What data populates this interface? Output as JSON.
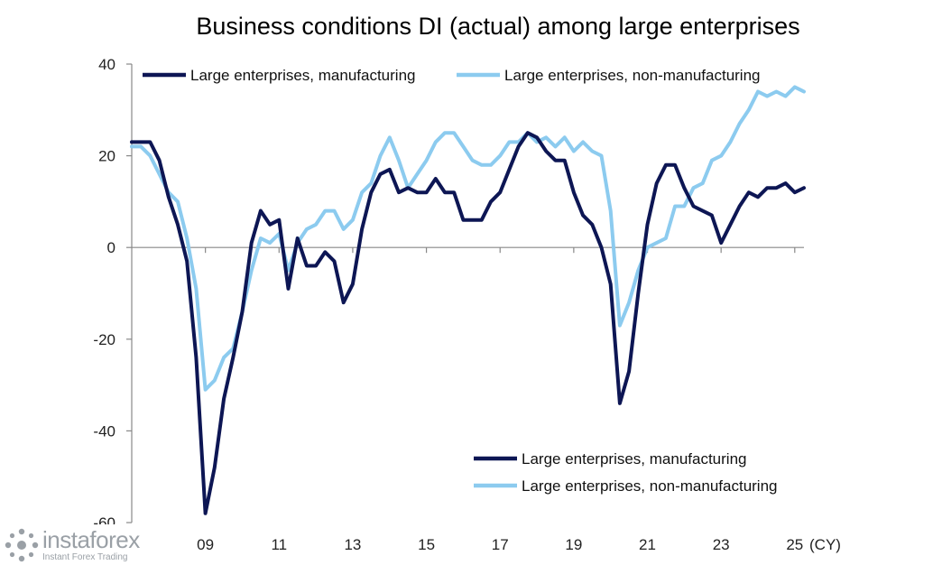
{
  "watermark": {
    "brand": "instaforex",
    "tagline": "Instant Forex Trading"
  },
  "chart_data": {
    "type": "line",
    "title": "Business conditions DI (actual) among large enterprises",
    "xlabel": "(CY)",
    "ylabel": "",
    "ylim": [
      -60,
      40
    ],
    "xlim": [
      2007.0,
      2025.25
    ],
    "yticks": [
      40,
      20,
      0,
      -20,
      -40,
      -60
    ],
    "xticks": [
      {
        "value": 2009,
        "label": "09"
      },
      {
        "value": 2011,
        "label": "11"
      },
      {
        "value": 2013,
        "label": "13"
      },
      {
        "value": 2015,
        "label": "15"
      },
      {
        "value": 2017,
        "label": "17"
      },
      {
        "value": 2019,
        "label": "19"
      },
      {
        "value": 2021,
        "label": "21"
      },
      {
        "value": 2023,
        "label": "23"
      },
      {
        "value": 2025,
        "label": "25"
      }
    ],
    "x_unit_label": "(CY)",
    "legends": [
      {
        "position": "top-left",
        "entries": [
          "Large enterprises, manufacturing",
          "Large enterprises, non-manufacturing"
        ]
      },
      {
        "position": "bottom-right",
        "entries": [
          "Large enterprises, manufacturing",
          "Large enterprises, non-manufacturing"
        ]
      }
    ],
    "series": [
      {
        "name": "Large enterprises, manufacturing",
        "color": "#0d1654",
        "x": [
          2007.0,
          2007.25,
          2007.5,
          2007.75,
          2008.0,
          2008.25,
          2008.5,
          2008.75,
          2009.0,
          2009.25,
          2009.5,
          2009.75,
          2010.0,
          2010.25,
          2010.5,
          2010.75,
          2011.0,
          2011.25,
          2011.5,
          2011.75,
          2012.0,
          2012.25,
          2012.5,
          2012.75,
          2013.0,
          2013.25,
          2013.5,
          2013.75,
          2014.0,
          2014.25,
          2014.5,
          2014.75,
          2015.0,
          2015.25,
          2015.5,
          2015.75,
          2016.0,
          2016.25,
          2016.5,
          2016.75,
          2017.0,
          2017.25,
          2017.5,
          2017.75,
          2018.0,
          2018.25,
          2018.5,
          2018.75,
          2019.0,
          2019.25,
          2019.5,
          2019.75,
          2020.0,
          2020.25,
          2020.5,
          2020.75,
          2021.0,
          2021.25,
          2021.5,
          2021.75,
          2022.0,
          2022.25,
          2022.5,
          2022.75,
          2023.0,
          2023.25,
          2023.5,
          2023.75,
          2024.0,
          2024.25,
          2024.5,
          2024.75,
          2025.0,
          2025.25
        ],
        "values": [
          23,
          23,
          23,
          19,
          11,
          5,
          -3,
          -24,
          -58,
          -48,
          -33,
          -24,
          -14,
          1,
          8,
          5,
          6,
          -9,
          2,
          -4,
          -4,
          -1,
          -3,
          -12,
          -8,
          4,
          12,
          16,
          17,
          12,
          13,
          12,
          12,
          15,
          12,
          12,
          6,
          6,
          6,
          10,
          12,
          17,
          22,
          25,
          24,
          21,
          19,
          19,
          12,
          7,
          5,
          0,
          -8,
          -34,
          -27,
          -10,
          5,
          14,
          18,
          18,
          13,
          9,
          8,
          7,
          1,
          5,
          9,
          12,
          11,
          13,
          13,
          14,
          12,
          13
        ]
      },
      {
        "name": "Large enterprises, non-manufacturing",
        "color": "#8ccbef",
        "x": [
          2007.0,
          2007.25,
          2007.5,
          2007.75,
          2008.0,
          2008.25,
          2008.5,
          2008.75,
          2009.0,
          2009.25,
          2009.5,
          2009.75,
          2010.0,
          2010.25,
          2010.5,
          2010.75,
          2011.0,
          2011.25,
          2011.5,
          2011.75,
          2012.0,
          2012.25,
          2012.5,
          2012.75,
          2013.0,
          2013.25,
          2013.5,
          2013.75,
          2014.0,
          2014.25,
          2014.5,
          2014.75,
          2015.0,
          2015.25,
          2015.5,
          2015.75,
          2016.0,
          2016.25,
          2016.5,
          2016.75,
          2017.0,
          2017.25,
          2017.5,
          2017.75,
          2018.0,
          2018.25,
          2018.5,
          2018.75,
          2019.0,
          2019.25,
          2019.5,
          2019.75,
          2020.0,
          2020.25,
          2020.5,
          2020.75,
          2021.0,
          2021.25,
          2021.5,
          2021.75,
          2022.0,
          2022.25,
          2022.5,
          2022.75,
          2023.0,
          2023.25,
          2023.5,
          2023.75,
          2024.0,
          2024.25,
          2024.5,
          2024.75,
          2025.0,
          2025.25
        ],
        "values": [
          22,
          22,
          20,
          16,
          12,
          10,
          2,
          -9,
          -31,
          -29,
          -24,
          -22,
          -14,
          -5,
          2,
          1,
          3,
          -5,
          1,
          4,
          5,
          8,
          8,
          4,
          6,
          12,
          14,
          20,
          24,
          19,
          13,
          16,
          19,
          23,
          25,
          25,
          22,
          19,
          18,
          18,
          20,
          23,
          23,
          25,
          23,
          24,
          22,
          24,
          21,
          23,
          21,
          20,
          8,
          -17,
          -12,
          -5,
          0,
          1,
          2,
          9,
          9,
          13,
          14,
          19,
          20,
          23,
          27,
          30,
          34,
          33,
          34,
          33,
          35,
          34
        ]
      }
    ]
  }
}
